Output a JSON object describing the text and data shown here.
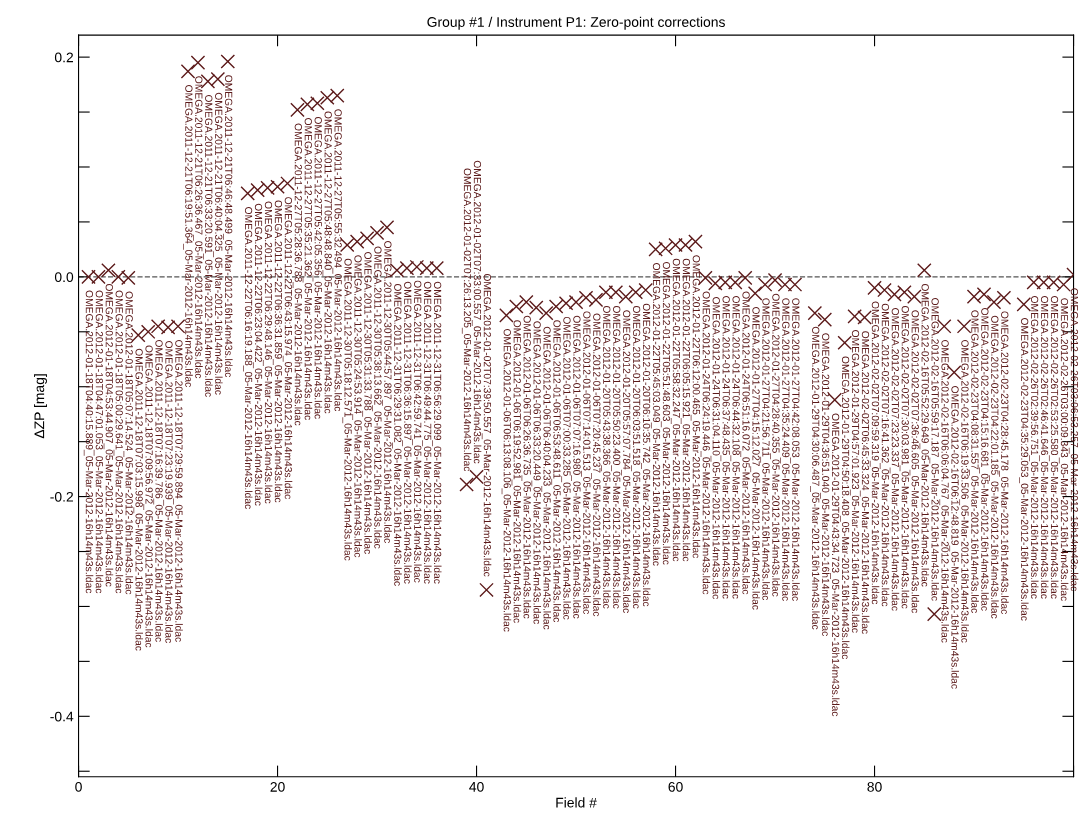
{
  "chart_data": {
    "type": "scatter",
    "title": "Group #1 / Instrument P1: Zero-point corrections",
    "xlabel": "Field #",
    "ylabel": "ΔZP [mag]",
    "marker": "cross",
    "grid": false,
    "xlim": [
      0,
      100
    ],
    "ylim": [
      -0.455,
      0.22
    ],
    "xticks": [
      0,
      20,
      40,
      60,
      80,
      {
        "value": 100,
        "label": null
      }
    ],
    "yticks": [
      {
        "value": 0.2,
        "label": "0.2"
      },
      {
        "value": 0.15,
        "label": null
      },
      {
        "value": 0.1,
        "label": null
      },
      {
        "value": 0.05,
        "label": null
      },
      {
        "value": 0.0,
        "label": "0.0"
      },
      {
        "value": -0.05,
        "label": null
      },
      {
        "value": -0.1,
        "label": null
      },
      {
        "value": -0.15,
        "label": null
      },
      {
        "value": -0.2,
        "label": "-0.2"
      },
      {
        "value": -0.25,
        "label": null
      },
      {
        "value": -0.3,
        "label": null
      },
      {
        "value": -0.35,
        "label": null
      },
      {
        "value": -0.4,
        "label": "-0.4"
      },
      {
        "value": -0.45,
        "label": null
      }
    ],
    "ref_lines": [
      {
        "axis": "y",
        "value": 0,
        "label": null,
        "color": "#555555",
        "line_style": "dashed"
      }
    ],
    "series": [
      {
        "color": "#5c1a1a",
        "x": [
          1,
          2,
          3,
          4,
          5,
          6,
          7,
          8,
          9,
          10,
          11,
          12,
          13,
          14,
          15,
          17,
          18,
          19,
          20,
          21,
          22,
          23,
          24,
          25,
          26,
          27,
          28,
          29,
          30,
          31,
          32,
          33,
          34,
          35,
          36,
          39,
          40,
          41,
          43,
          44,
          45,
          46,
          47,
          48,
          49,
          50,
          51,
          52,
          53,
          54,
          55,
          56,
          57,
          58,
          59,
          60,
          61,
          62,
          63,
          64,
          65,
          66,
          67,
          68,
          69,
          70,
          71,
          72,
          74,
          75,
          76,
          77,
          78,
          79,
          80,
          81,
          82,
          83,
          84,
          85,
          86,
          87,
          88,
          89,
          90,
          91,
          92,
          93,
          95,
          96,
          97,
          98,
          99,
          100
        ],
        "values": [
          0.0,
          0.0,
          0.006,
          0.0,
          -0.001,
          -0.053,
          -0.05,
          -0.045,
          -0.046,
          -0.045,
          0.187,
          0.195,
          0.178,
          0.18,
          0.196,
          0.076,
          0.079,
          0.081,
          0.082,
          0.085,
          0.152,
          0.157,
          0.158,
          0.163,
          0.165,
          0.029,
          0.032,
          0.035,
          0.04,
          0.045,
          0.006,
          0.008,
          0.009,
          0.008,
          0.008,
          -0.189,
          -0.182,
          -0.285,
          -0.035,
          -0.027,
          -0.023,
          -0.028,
          -0.033,
          -0.027,
          -0.024,
          -0.023,
          -0.019,
          -0.021,
          -0.014,
          -0.014,
          -0.018,
          -0.014,
          -0.012,
          0.025,
          0.026,
          0.029,
          0.029,
          0.032,
          -0.001,
          -0.006,
          -0.005,
          -0.005,
          -0.001,
          -0.015,
          -0.007,
          -0.003,
          -0.007,
          -0.007,
          -0.033,
          -0.039,
          -0.112,
          -0.06,
          -0.036,
          -0.037,
          -0.01,
          -0.012,
          -0.016,
          -0.014,
          -0.018,
          0.006,
          -0.307,
          -0.045,
          -0.087,
          -0.045,
          -0.018,
          -0.016,
          -0.023,
          -0.019,
          -0.025,
          -0.005,
          -0.005,
          -0.005,
          -0.007,
          0.002
        ]
      }
    ],
    "annotations": [
      {
        "text": "OMEGA.2012-01-18T04:40:15.889_05-Mar-2012-16h14m43s.ldac",
        "x": 1,
        "y": 0.0
      },
      {
        "text": "OMEGA.2012-01-18T04:47:01.053_05-Mar-2012-16h14m43s.ldac",
        "x": 2,
        "y": 0.0
      },
      {
        "text": "OMEGA.2012-01-18T04:53:44.907_05-Mar-2012-16h14m43s.ldac",
        "x": 3,
        "y": 0.006
      },
      {
        "text": "OMEGA.2012-01-18T05:00:29.641_05-Mar-2012-16h14m43s.ldac",
        "x": 4,
        "y": 0.0
      },
      {
        "text": "OMEGA.2012-01-18T05:07:14.524_05-Mar-2012-16h14m43s.ldac",
        "x": 5,
        "y": -0.001
      },
      {
        "text": "OMEGA.2011-12-18T07:03:15.998_05-Mar-2012-16h14m43s.ldac",
        "x": 6,
        "y": -0.053
      },
      {
        "text": "OMEGA.2011-12-18T07:09:56.972_05-Mar-2012-16h14m43s.ldac",
        "x": 7,
        "y": -0.05
      },
      {
        "text": "OMEGA.2011-12-18T07:16:39.786_05-Mar-2012-16h14m43s.ldac",
        "x": 8,
        "y": -0.045
      },
      {
        "text": "OMEGA.2011-12-18T07:23:19.939_05-Mar-2012-16h14m43s.ldac",
        "x": 9,
        "y": -0.046
      },
      {
        "text": "OMEGA.2011-12-18T07:29:59.894_05-Mar-2012-16h14m43s.ldac",
        "x": 10,
        "y": -0.045
      },
      {
        "text": "OMEGA.2011-12-21T06:19:51.364_05-Mar-2012-16h14m43s.ldac",
        "x": 11,
        "y": 0.187
      },
      {
        "text": "OMEGA.2011-12-21T06:26:36.467_05-Mar-2012-16h14m43s.ldac",
        "x": 12,
        "y": 0.195
      },
      {
        "text": "OMEGA.2011-12-21T06:33:20.591_05-Mar-2012-16h14m43s.ldac",
        "x": 13,
        "y": 0.178
      },
      {
        "text": "OMEGA.2011-12-21T06:40:04.325_05-Mar-2012-16h14m43s.ldac",
        "x": 14,
        "y": 0.18
      },
      {
        "text": "OMEGA.2011-12-21T06:46:48.499_05-Mar-2012-16h14m43s.ldac",
        "x": 15,
        "y": 0.196
      },
      {
        "text": "OMEGA.2011-12-22T06:16:19.188_05-Mar-2012-16h14m43s.ldac",
        "x": 17,
        "y": 0.076
      },
      {
        "text": "OMEGA.2011-12-22T06:23:04.422_05-Mar-2012-16h14m43s.ldac",
        "x": 18,
        "y": 0.079
      },
      {
        "text": "OMEGA.2011-12-22T06:29:48.146_05-Mar-2012-16h14m43s.ldac",
        "x": 19,
        "y": 0.081
      },
      {
        "text": "OMEGA.2011-12-22T06:36:31.859_05-Mar-2012-16h14m43s.ldac",
        "x": 20,
        "y": 0.082
      },
      {
        "text": "OMEGA.2011-12-22T06:43:15.974_05-Mar-2012-16h14m43s.ldac",
        "x": 21,
        "y": 0.085
      },
      {
        "text": "OMEGA.2011-12-27T05:28:36.788_05-Mar-2012-16h14m43s.ldac",
        "x": 22,
        "y": 0.152
      },
      {
        "text": "OMEGA.2011-12-27T05:35:21.362_05-Mar-2012-16h14m43s.ldac",
        "x": 23,
        "y": 0.157
      },
      {
        "text": "OMEGA.2011-12-27T05:42:05.356_05-Mar-2012-16h14m43s.ldac",
        "x": 24,
        "y": 0.158
      },
      {
        "text": "OMEGA.2011-12-27T05:48:48.840_05-Mar-2012-16h14m43s.ldac",
        "x": 25,
        "y": 0.163
      },
      {
        "text": "OMEGA.2011-12-27T05:55:32.494_05-Mar-2012-16h14m43s.ldac",
        "x": 26,
        "y": 0.165
      },
      {
        "text": "OMEGA.2011-12-30T05:18:12.571_05-Mar-2012-16h14m43s.ldac",
        "x": 27,
        "y": 0.029
      },
      {
        "text": "OMEGA.2011-12-30T05:24:53.914_05-Mar-2012-16h14m43s.ldac",
        "x": 28,
        "y": 0.032
      },
      {
        "text": "OMEGA.2011-12-30T05:31:33.788_05-Mar-2012-16h14m43s.ldac",
        "x": 29,
        "y": 0.035
      },
      {
        "text": "OMEGA.2011-12-30T05:38:13.662_05-Mar-2012-16h14m43s.ldac",
        "x": 30,
        "y": 0.04
      },
      {
        "text": "OMEGA.2011-12-30T05:44:57.897_05-Mar-2012-16h14m43s.ldac",
        "x": 31,
        "y": 0.045
      },
      {
        "text": "OMEGA.2011-12-31T06:29:31.082_05-Mar-2012-16h14m43s.ldac",
        "x": 32,
        "y": 0.006
      },
      {
        "text": "OMEGA.2011-12-31T06:36:15.897_05-Mar-2012-16h14m43s.ldac",
        "x": 33,
        "y": 0.008
      },
      {
        "text": "OMEGA.2011-12-31T06:42:59.741_05-Mar-2012-16h14m43s.ldac",
        "x": 34,
        "y": 0.009
      },
      {
        "text": "OMEGA.2011-12-31T06:49:44.775_05-Mar-2012-16h14m43s.ldac",
        "x": 35,
        "y": 0.008
      },
      {
        "text": "OMEGA.2011-12-31T06:56:29.099_05-Mar-2012-16h14m43s.ldac",
        "x": 36,
        "y": 0.008
      },
      {
        "text": "OMEGA.2012-01-02T07:26:13.205_05-Mar-2012-16h14m43s.ldac",
        "x": 39,
        "y": -0.189
      },
      {
        "text": "OMEGA.2012-01-02T07:33:00.557_05-Mar-2012-16h14m43s.ldac",
        "x": 40,
        "y": -0.182
      },
      {
        "text": "OMEGA.2012-01-02T07:39:50.557_05-Mar-2012-16h14m43s.ldac",
        "x": 41,
        "y": -0.285
      },
      {
        "text": "OMEGA.2012-01-06T06:13:08.106_05-Mar-2012-16h14m43s.ldac",
        "x": 43,
        "y": -0.035
      },
      {
        "text": "OMEGA.2012-01-06T06:19:52.981_05-Mar-2012-16h14m43s.ldac",
        "x": 44,
        "y": -0.027
      },
      {
        "text": "OMEGA.2012-01-06T06:26:36.735_05-Mar-2012-16h14m43s.ldac",
        "x": 45,
        "y": -0.023
      },
      {
        "text": "OMEGA.2012-01-06T06:33:20.449_05-Mar-2012-16h14m43s.ldac",
        "x": 46,
        "y": -0.028
      },
      {
        "text": "OMEGA.2012-01-06T06:40:04.233_05-Mar-2012-16h14m43s.ldac",
        "x": 47,
        "y": -0.033
      },
      {
        "text": "OMEGA.2012-01-06T06:53:48.611_05-Mar-2012-16h14m43s.ldac",
        "x": 48,
        "y": -0.027
      },
      {
        "text": "OMEGA.2012-01-06T07:00:33.285_05-Mar-2012-16h14m43s.ldac",
        "x": 49,
        "y": -0.024
      },
      {
        "text": "OMEGA.2012-01-06T07:07:16.980_05-Mar-2012-16h14m43s.ldac",
        "x": 50,
        "y": -0.023
      },
      {
        "text": "OMEGA.2012-01-06T07:14:01.513_05-Mar-2012-16h14m43s.ldac",
        "x": 51,
        "y": -0.019
      },
      {
        "text": "OMEGA.2012-01-06T07:20:45.237_05-Mar-2012-16h14m43s.ldac",
        "x": 52,
        "y": -0.021
      },
      {
        "text": "OMEGA.2012-01-20T05:43:38.366_05-Mar-2012-16h14m43s.ldac",
        "x": 53,
        "y": -0.014
      },
      {
        "text": "OMEGA.2012-01-20T05:50:23.400_05-Mar-2012-16h14m43s.ldac",
        "x": 54,
        "y": -0.014
      },
      {
        "text": "OMEGA.2012-01-20T05:57:07.784_05-Mar-2012-16h14m43s.ldac",
        "x": 55,
        "y": -0.018
      },
      {
        "text": "OMEGA.2012-01-20T06:03:51.518_05-Mar-2012-16h14m43s.ldac",
        "x": 56,
        "y": -0.014
      },
      {
        "text": "OMEGA.2012-01-20T06:10:35.742_05-Mar-2012-16h14m43s.ldac",
        "x": 57,
        "y": -0.012
      },
      {
        "text": "OMEGA.2012-01-22T05:45:03.049_05-Mar-2012-16h14m43s.ldac",
        "x": 58,
        "y": 0.025
      },
      {
        "text": "OMEGA.2012-01-22T05:51:48.603_05-Mar-2012-16h14m43s.ldac",
        "x": 59,
        "y": 0.026
      },
      {
        "text": "OMEGA.2012-01-22T05:58:32.247_05-Mar-2012-16h14m43s.ldac",
        "x": 60,
        "y": 0.029
      },
      {
        "text": "OMEGA.2012-01-22T06:05:15.921_05-Mar-2012-16h14m43s.ldac",
        "x": 61,
        "y": 0.029
      },
      {
        "text": "OMEGA.2012-01-22T06:12:00.465_05-Mar-2012-16h14m43s.ldac",
        "x": 62,
        "y": 0.032
      },
      {
        "text": "OMEGA.2012-01-24T06:24:19.446_05-Mar-2012-16h14m43s.ldac",
        "x": 63,
        "y": -0.001
      },
      {
        "text": "OMEGA.2012-01-24T06:31:04.110_05-Mar-2012-16h14m43s.ldac",
        "x": 64,
        "y": -0.006
      },
      {
        "text": "OMEGA.2012-01-24T06:37:48.435_05-Mar-2012-16h14m43s.ldac",
        "x": 65,
        "y": -0.005
      },
      {
        "text": "OMEGA.2012-01-24T06:44:32.108_05-Mar-2012-16h14m43s.ldac",
        "x": 66,
        "y": -0.005
      },
      {
        "text": "OMEGA.2012-01-24T06:51:16.072_05-Mar-2012-16h14m43s.ldac",
        "x": 67,
        "y": -0.001
      },
      {
        "text": "OMEGA.2012-01-27T04:15:12.027_05-Mar-2012-16h14m43s.ldac",
        "x": 68,
        "y": -0.015
      },
      {
        "text": "OMEGA.2012-01-27T04:21:56.711_05-Mar-2012-16h14m43s.ldac",
        "x": 69,
        "y": -0.007
      },
      {
        "text": "OMEGA.2012-01-27T04:28:40.355_05-Mar-2012-16h14m43s.ldac",
        "x": 70,
        "y": -0.003
      },
      {
        "text": "OMEGA.2012-01-27T04:35:24.409_05-Mar-2012-16h14m43s.ldac",
        "x": 71,
        "y": -0.007
      },
      {
        "text": "OMEGA.2012-01-27T04:42:08.053_05-Mar-2012-16h14m43s.ldac",
        "x": 72,
        "y": -0.007
      },
      {
        "text": "OMEGA.2012-01-29T04:30:06.487_05-Mar-2012-16h14m43s.ldac",
        "x": 74,
        "y": -0.033
      },
      {
        "text": "OMEGA.2012-01-29T04:36:51.040_05-Mar-2012-16h14m43s.ldac",
        "x": 75,
        "y": -0.039
      },
      {
        "text": "OMEGA.2012-01-29T04:43:34.723_05-Mar-2012-16h14m43s.ldac",
        "x": 76,
        "y": -0.112
      },
      {
        "text": "OMEGA.2012-01-29T04:50:18.408_05-Mar-2012-16h14m43s.ldac",
        "x": 77,
        "y": -0.06
      },
      {
        "text": "OMEGA.2012-01-29T04:57:01.923_05-Mar-2012-16h14m43s.ldac",
        "x": 78,
        "y": -0.036
      },
      {
        "text": "OMEGA.2012-02-02T06:45:33.324_05-Mar-2012-16h14m43s.ldac",
        "x": 79,
        "y": -0.037
      },
      {
        "text": "OMEGA.2012-02-02T07:09:59.319_05-Mar-2012-16h14m43s.ldac",
        "x": 80,
        "y": -0.01
      },
      {
        "text": "OMEGA.2012-02-02T07:16:41.362_05-Mar-2012-16h14m43s.ldac",
        "x": 81,
        "y": -0.012
      },
      {
        "text": "OMEGA.2012-02-02T07:23:23.337_05-Mar-2012-16h14m43s.ldac",
        "x": 82,
        "y": -0.016
      },
      {
        "text": "OMEGA.2012-02-02T07:30:03.981_05-Mar-2012-16h14m43s.ldac",
        "x": 83,
        "y": -0.014
      },
      {
        "text": "OMEGA.2012-02-02T07:36:46.605_05-Mar-2012-16h14m43s.ldac",
        "x": 84,
        "y": -0.018
      },
      {
        "text": "OMEGA.2012-02-16T05:52:29.649_05-Mar-2012-16h14m43s.ldac",
        "x": 85,
        "y": 0.006
      },
      {
        "text": "OMEGA.2012-02-16T05:59:17.187_05-Mar-2012-16h14m43s.ldac",
        "x": 86,
        "y": -0.307
      },
      {
        "text": "OMEGA.2012-02-16T06:06:04.767_05-Mar-2012-16h14m43s.ldac",
        "x": 87,
        "y": -0.045
      },
      {
        "text": "OMEGA.2012-02-16T06:12:48.819_05-Mar-2012-16h14m43s.ldac",
        "x": 88,
        "y": -0.087
      },
      {
        "text": "OMEGA.2012-02-16T06:19:33.506_05-Mar-2012-16h14m43s.ldac",
        "x": 89,
        "y": -0.045
      },
      {
        "text": "OMEGA.2012-02-23T04:08:31.557_05-Mar-2012-16h14m43s.ldac",
        "x": 90,
        "y": -0.018
      },
      {
        "text": "OMEGA.2012-02-23T04:15:16.681_05-Mar-2012-16h14m43s.ldac",
        "x": 91,
        "y": -0.016
      },
      {
        "text": "OMEGA.2012-02-23T04:22:01.185_05-Mar-2012-16h14m43s.ldac",
        "x": 92,
        "y": -0.023
      },
      {
        "text": "OMEGA.2012-02-23T04:28:45.178_05-Mar-2012-16h14m43s.ldac",
        "x": 93,
        "y": -0.019
      },
      {
        "text": "OMEGA.2012-02-23T04:35:29.053_05-Mar-2012-16h14m43s.ldac",
        "x": 95,
        "y": -0.025
      },
      {
        "text": "OMEGA.2012-02-26T02:39:56.751_05-Mar-2012-16h14m43s.ldac",
        "x": 96,
        "y": -0.005
      },
      {
        "text": "OMEGA.2012-02-26T02:46:41.646_05-Mar-2012-16h14m43s.ldac",
        "x": 97,
        "y": -0.005
      },
      {
        "text": "OMEGA.2012-02-26T02:53:25.580_05-Mar-2012-16h14m43s.ldac",
        "x": 98,
        "y": -0.005
      },
      {
        "text": "OMEGA.2012-02-26T03:00:09.343_05-Mar-2012-16h14m43s.ldac",
        "x": 99,
        "y": -0.007
      },
      {
        "text": "OMEGA.2012-02-26T03:06:53.257_05-Mar-2012-16h14m43s.ldac",
        "x": 100,
        "y": 0.002
      }
    ]
  }
}
